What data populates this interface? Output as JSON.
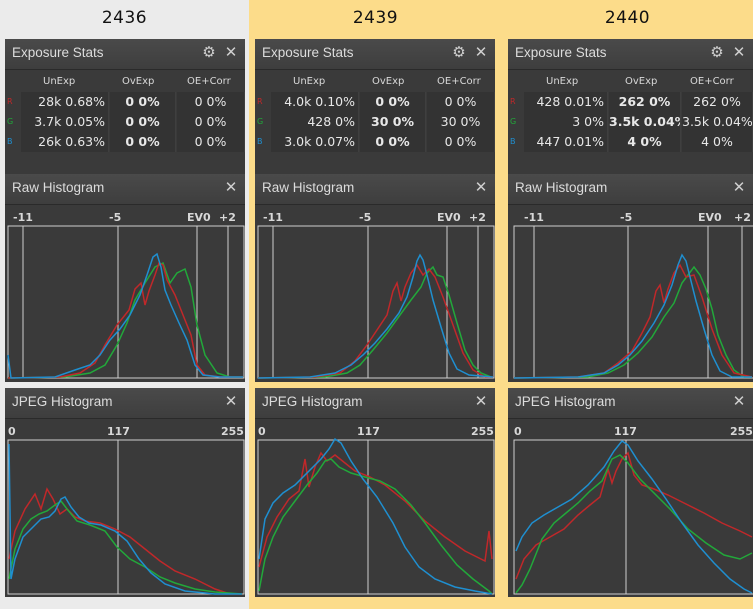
{
  "columns": [
    {
      "title": "2436",
      "stats": {
        "title": "Exposure Stats",
        "headers": [
          "UnExp",
          "OvExp",
          "OE+Corr"
        ],
        "rows": [
          {
            "channel": "R",
            "color": "#c0282a",
            "unexp": "28k 0.68%",
            "ovexp": "0 0%",
            "corr": "0 0%"
          },
          {
            "channel": "G",
            "color": "#22a83a",
            "unexp": "3.7k 0.05%",
            "ovexp": "0 0%",
            "corr": "0 0%"
          },
          {
            "channel": "B",
            "color": "#1f8fd0",
            "unexp": "26k 0.63%",
            "ovexp": "0 0%",
            "corr": "0 0%"
          }
        ]
      },
      "raw": {
        "title": "Raw Histogram",
        "ticks": [
          "-11",
          "-5",
          "EV0",
          "+2"
        ]
      },
      "jpeg": {
        "title": "JPEG Histogram",
        "ticks": [
          "0",
          "117",
          "255"
        ]
      }
    },
    {
      "title": "2439",
      "stats": {
        "title": "Exposure Stats",
        "headers": [
          "UnExp",
          "OvExp",
          "OE+Corr"
        ],
        "rows": [
          {
            "channel": "R",
            "color": "#c0282a",
            "unexp": "4.0k 0.10%",
            "ovexp": "0 0%",
            "corr": "0 0%"
          },
          {
            "channel": "G",
            "color": "#22a83a",
            "unexp": "428 0%",
            "ovexp": "30 0%",
            "corr": "30 0%"
          },
          {
            "channel": "B",
            "color": "#1f8fd0",
            "unexp": "3.0k 0.07%",
            "ovexp": "0 0%",
            "corr": "0 0%"
          }
        ]
      },
      "raw": {
        "title": "Raw Histogram",
        "ticks": [
          "-11",
          "-5",
          "EV0",
          "+2"
        ]
      },
      "jpeg": {
        "title": "JPEG Histogram",
        "ticks": [
          "0",
          "117",
          "255"
        ]
      }
    },
    {
      "title": "2440",
      "stats": {
        "title": "Exposure Stats",
        "headers": [
          "UnExp",
          "OvExp",
          "OE+Corr"
        ],
        "rows": [
          {
            "channel": "R",
            "color": "#c0282a",
            "unexp": "428 0.01%",
            "ovexp": "262 0%",
            "corr": "262 0%"
          },
          {
            "channel": "G",
            "color": "#22a83a",
            "unexp": "3 0%",
            "ovexp": "3.5k 0.04%",
            "corr": "3.5k 0.04%"
          },
          {
            "channel": "B",
            "color": "#1f8fd0",
            "unexp": "447 0.01%",
            "ovexp": "4 0%",
            "corr": "4 0%"
          }
        ]
      },
      "raw": {
        "title": "Raw Histogram",
        "ticks": [
          "-11",
          "-5",
          "EV0",
          "+2"
        ]
      },
      "jpeg": {
        "title": "JPEG Histogram",
        "ticks": [
          "0",
          "117",
          "255"
        ]
      }
    }
  ],
  "colors": {
    "red": "#c0282a",
    "green": "#22a83a",
    "blue": "#1f8fd0",
    "panel": "#3a3a3a",
    "highlight": "#fcdc8a"
  },
  "icons": {
    "gear": "gear-icon",
    "close": "close-icon"
  }
}
